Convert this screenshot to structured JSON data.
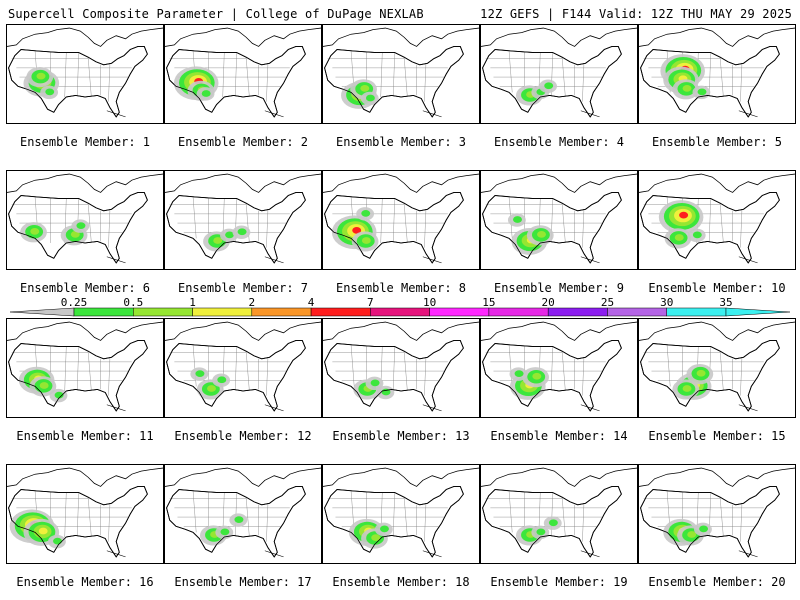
{
  "header": {
    "left": "Supercell Composite Parameter | College of DuPage NEXLAB",
    "right": "12Z GEFS | F144 Valid: 12Z THU MAY 29 2025"
  },
  "caption_prefix": "Ensemble Member: ",
  "members": [
    {
      "number": "1",
      "caption": "Ensemble Member: 1",
      "blobs": [
        [
          22,
          38,
          3
        ],
        [
          21,
          34,
          2
        ],
        [
          27,
          44,
          1
        ]
      ]
    },
    {
      "number": "2",
      "caption": "Ensemble Member: 2",
      "blobs": [
        [
          20,
          38,
          4
        ],
        [
          23,
          43,
          2
        ],
        [
          26,
          45,
          1
        ]
      ]
    },
    {
      "number": "3",
      "caption": "Ensemble Member: 3",
      "blobs": [
        [
          23,
          46,
          3
        ],
        [
          26,
          42,
          2
        ],
        [
          30,
          48,
          1
        ]
      ]
    },
    {
      "number": "4",
      "caption": "Ensemble Member: 4",
      "blobs": [
        [
          31,
          46,
          2
        ],
        [
          38,
          44,
          1
        ],
        [
          43,
          40,
          1
        ]
      ]
    },
    {
      "number": "5",
      "caption": "Ensemble Member: 5",
      "blobs": [
        [
          28,
          30,
          4
        ],
        [
          27,
          36,
          3
        ],
        [
          30,
          42,
          2
        ],
        [
          40,
          44,
          1
        ]
      ]
    },
    {
      "number": "6",
      "caption": "Ensemble Member: 6",
      "blobs": [
        [
          17,
          40,
          2
        ],
        [
          43,
          42,
          2
        ],
        [
          47,
          36,
          1
        ]
      ]
    },
    {
      "number": "7",
      "caption": "Ensemble Member: 7",
      "blobs": [
        [
          33,
          46,
          2
        ],
        [
          41,
          42,
          1
        ],
        [
          49,
          40,
          1
        ]
      ]
    },
    {
      "number": "8",
      "caption": "Ensemble Member: 8",
      "blobs": [
        [
          20,
          40,
          4
        ],
        [
          27,
          46,
          2
        ],
        [
          27,
          28,
          1
        ]
      ]
    },
    {
      "number": "9",
      "caption": "Ensemble Member: 9",
      "blobs": [
        [
          31,
          46,
          3
        ],
        [
          38,
          42,
          2
        ],
        [
          23,
          32,
          1
        ]
      ]
    },
    {
      "number": "10",
      "caption": "Ensemble Member: 10",
      "blobs": [
        [
          27,
          30,
          4
        ],
        [
          25,
          44,
          2
        ],
        [
          37,
          42,
          1
        ]
      ]
    },
    {
      "number": "11",
      "caption": "Ensemble Member: 11",
      "blobs": [
        [
          19,
          40,
          3
        ],
        [
          23,
          44,
          2
        ],
        [
          33,
          50,
          1
        ]
      ]
    },
    {
      "number": "12",
      "caption": "Ensemble Member: 12",
      "blobs": [
        [
          29,
          46,
          2
        ],
        [
          36,
          40,
          1
        ],
        [
          22,
          36,
          1
        ]
      ]
    },
    {
      "number": "13",
      "caption": "Ensemble Member: 13",
      "blobs": [
        [
          28,
          46,
          2
        ],
        [
          33,
          42,
          1
        ],
        [
          40,
          48,
          1
        ]
      ]
    },
    {
      "number": "14",
      "caption": "Ensemble Member: 14",
      "blobs": [
        [
          30,
          44,
          3
        ],
        [
          35,
          38,
          2
        ],
        [
          24,
          36,
          1
        ]
      ]
    },
    {
      "number": "15",
      "caption": "Ensemble Member: 15",
      "blobs": [
        [
          35,
          44,
          3
        ],
        [
          39,
          36,
          2
        ],
        [
          30,
          46,
          2
        ]
      ]
    },
    {
      "number": "16",
      "caption": "Ensemble Member: 16",
      "blobs": [
        [
          16,
          40,
          4
        ],
        [
          22,
          44,
          3
        ],
        [
          32,
          50,
          1
        ]
      ]
    },
    {
      "number": "17",
      "caption": "Ensemble Member: 17",
      "blobs": [
        [
          31,
          46,
          2
        ],
        [
          38,
          44,
          1
        ],
        [
          47,
          36,
          1
        ]
      ]
    },
    {
      "number": "18",
      "caption": "Ensemble Member: 18",
      "blobs": [
        [
          28,
          44,
          3
        ],
        [
          33,
          48,
          2
        ],
        [
          39,
          42,
          1
        ]
      ]
    },
    {
      "number": "19",
      "caption": "Ensemble Member: 19",
      "blobs": [
        [
          31,
          46,
          2
        ],
        [
          38,
          44,
          1
        ],
        [
          46,
          38,
          1
        ]
      ]
    },
    {
      "number": "20",
      "caption": "Ensemble Member: 20",
      "blobs": [
        [
          27,
          44,
          3
        ],
        [
          33,
          46,
          2
        ],
        [
          41,
          42,
          1
        ]
      ]
    }
  ],
  "legend": {
    "ticks": [
      "0.25",
      "0.5",
      "1",
      "2",
      "4",
      "7",
      "10",
      "15",
      "20",
      "25",
      "30",
      "35"
    ],
    "colors": [
      "#c8c8c8",
      "#3ce63c",
      "#96e632",
      "#f0f03c",
      "#fa9628",
      "#ff1e1e",
      "#e6147d",
      "#ff28ff",
      "#e628e6",
      "#8c1ef0",
      "#b464e6",
      "#3cf0f0"
    ]
  }
}
